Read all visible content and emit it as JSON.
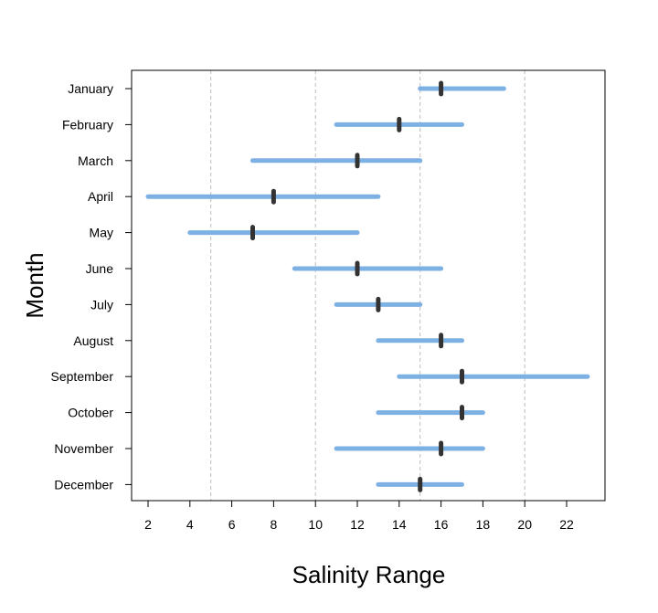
{
  "chart_data": {
    "type": "range",
    "xlabel": "Salinity Range",
    "ylabel": "Month",
    "xlim": [
      1.2,
      23.8
    ],
    "xticks": [
      2,
      4,
      6,
      8,
      10,
      12,
      14,
      16,
      18,
      20,
      22
    ],
    "vertical_gridlines": [
      5,
      10,
      15,
      20
    ],
    "categories": [
      "January",
      "February",
      "March",
      "April",
      "May",
      "June",
      "July",
      "August",
      "September",
      "October",
      "November",
      "December"
    ],
    "ranges": [
      {
        "month": "January",
        "min": 15,
        "max": 19,
        "median": 16
      },
      {
        "month": "February",
        "min": 11,
        "max": 17,
        "median": 14
      },
      {
        "month": "March",
        "min": 7,
        "max": 15,
        "median": 12
      },
      {
        "month": "April",
        "min": 2,
        "max": 13,
        "median": 8
      },
      {
        "month": "May",
        "min": 4,
        "max": 12,
        "median": 7
      },
      {
        "month": "June",
        "min": 9,
        "max": 16,
        "median": 12
      },
      {
        "month": "July",
        "min": 11,
        "max": 15,
        "median": 13
      },
      {
        "month": "August",
        "min": 13,
        "max": 17,
        "median": 16
      },
      {
        "month": "September",
        "min": 14,
        "max": 23,
        "median": 17
      },
      {
        "month": "October",
        "min": 13,
        "max": 18,
        "median": 17
      },
      {
        "month": "November",
        "min": 11,
        "max": 18,
        "median": 16
      },
      {
        "month": "December",
        "min": 13,
        "max": 17,
        "median": 15
      }
    ],
    "colors": {
      "range_bar": "#7eb1e3",
      "median_marker": "#333333",
      "grid": "#bbbbbb",
      "axis": "#000000"
    }
  }
}
